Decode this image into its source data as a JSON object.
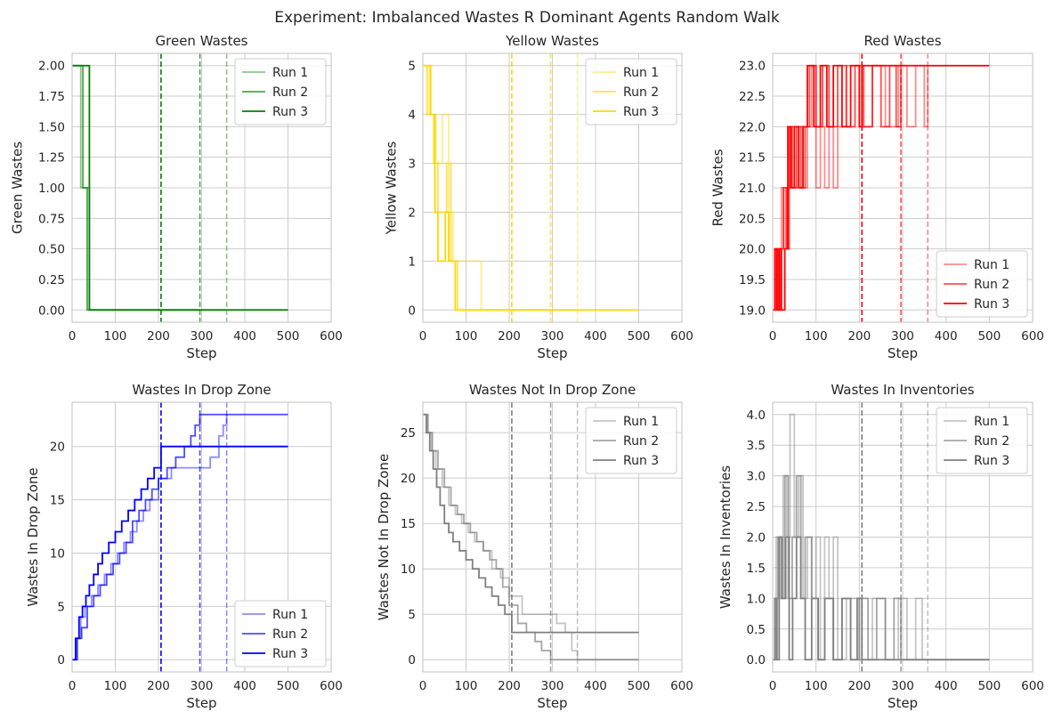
{
  "figure": {
    "title": "Experiment: Imbalanced Wastes R Dominant Agents Random Walk"
  },
  "chart_data": [
    {
      "type": "line",
      "title": "Green Wastes",
      "xlabel": "Step",
      "ylabel": "Green Wastes",
      "xlim": [
        0,
        600
      ],
      "ylim": [
        -0.1,
        2.1
      ],
      "xticks": [
        0,
        100,
        200,
        300,
        400,
        500,
        600
      ],
      "xtick_labels": [
        "0",
        "100",
        "200",
        "300",
        "400",
        "500",
        "600"
      ],
      "yticks": [
        0,
        0.25,
        0.5,
        0.75,
        1.0,
        1.25,
        1.5,
        1.75,
        2.0
      ],
      "ytick_labels": [
        "0.00",
        "0.25",
        "0.50",
        "0.75",
        "1.00",
        "1.25",
        "1.50",
        "1.75",
        "2.00"
      ],
      "grid": true,
      "legend": "top-right",
      "color": "#008000",
      "series": [
        {
          "name": "Run 1",
          "opacity": 0.45,
          "end_marker": 358,
          "x": [
            0,
            20,
            20,
            40,
            40,
            358
          ],
          "y": [
            2,
            2,
            1,
            1,
            0,
            0
          ]
        },
        {
          "name": "Run 2",
          "opacity": 0.7,
          "end_marker": 296,
          "x": [
            0,
            25,
            25,
            35,
            35,
            296
          ],
          "y": [
            2,
            2,
            1,
            1,
            0,
            0
          ]
        },
        {
          "name": "Run 3",
          "opacity": 1.0,
          "end_marker": 206,
          "x": [
            0,
            33,
            33,
            40,
            40,
            500
          ],
          "y": [
            2,
            2,
            2,
            1,
            0,
            0
          ]
        }
      ]
    },
    {
      "type": "line",
      "title": "Yellow Wastes",
      "xlabel": "Step",
      "ylabel": "Yellow Wastes",
      "xlim": [
        0,
        600
      ],
      "ylim": [
        -0.25,
        5.25
      ],
      "xticks": [
        0,
        100,
        200,
        300,
        400,
        500,
        600
      ],
      "xtick_labels": [
        "0",
        "100",
        "200",
        "300",
        "400",
        "500",
        "600"
      ],
      "yticks": [
        0,
        1,
        2,
        3,
        4,
        5
      ],
      "ytick_labels": [
        "0",
        "1",
        "2",
        "3",
        "4",
        "5"
      ],
      "grid": true,
      "legend": "top-right",
      "color": "#FFD700",
      "series": [
        {
          "name": "Run 1",
          "opacity": 0.45,
          "end_marker": 358,
          "x": [
            0,
            15,
            15,
            30,
            30,
            45,
            45,
            60,
            60,
            70,
            70,
            90,
            90,
            135,
            135,
            358
          ],
          "y": [
            5,
            5,
            4,
            4,
            3,
            3,
            4,
            4,
            2,
            2,
            1,
            1,
            1,
            1,
            0,
            0
          ]
        },
        {
          "name": "Run 2",
          "opacity": 0.7,
          "end_marker": 296,
          "x": [
            0,
            10,
            10,
            25,
            25,
            35,
            35,
            55,
            55,
            65,
            65,
            80,
            80,
            296
          ],
          "y": [
            5,
            5,
            4,
            4,
            3,
            3,
            2,
            2,
            3,
            3,
            1,
            1,
            0,
            0
          ]
        },
        {
          "name": "Run 3",
          "opacity": 1.0,
          "end_marker": 206,
          "x": [
            0,
            18,
            18,
            28,
            28,
            35,
            35,
            52,
            52,
            60,
            60,
            75,
            75,
            500
          ],
          "y": [
            5,
            5,
            4,
            4,
            2,
            2,
            1,
            1,
            2,
            2,
            1,
            1,
            0,
            0
          ]
        }
      ]
    },
    {
      "type": "line",
      "title": "Red Wastes",
      "xlabel": "Step",
      "ylabel": "Red Wastes",
      "xlim": [
        0,
        600
      ],
      "ylim": [
        18.8,
        23.2
      ],
      "xticks": [
        0,
        100,
        200,
        300,
        400,
        500,
        600
      ],
      "xtick_labels": [
        "0",
        "100",
        "200",
        "300",
        "400",
        "500",
        "600"
      ],
      "yticks": [
        19.0,
        19.5,
        20.0,
        20.5,
        21.0,
        21.5,
        22.0,
        22.5,
        23.0
      ],
      "ytick_labels": [
        "19.0",
        "19.5",
        "20.0",
        "20.5",
        "21.0",
        "21.5",
        "22.0",
        "22.5",
        "23.0"
      ],
      "grid": true,
      "legend": "bottom-right",
      "color": "#FF0000",
      "series": [
        {
          "name": "Run 1",
          "opacity": 0.45,
          "end_marker": 358,
          "x": [
            0,
            10,
            15,
            20,
            25,
            30,
            40,
            50,
            60,
            70,
            80,
            90,
            100,
            110,
            120,
            130,
            140,
            150,
            170,
            200,
            230,
            260,
            290,
            310,
            330,
            350,
            358
          ],
          "y": [
            19,
            20,
            19,
            21,
            20,
            21,
            22,
            21,
            22,
            21,
            22,
            23,
            21,
            22,
            21,
            22,
            21,
            22,
            23,
            22,
            23,
            22,
            23,
            22,
            23,
            22,
            23
          ]
        },
        {
          "name": "Run 2",
          "opacity": 0.7,
          "end_marker": 296,
          "x": [
            0,
            8,
            12,
            18,
            25,
            32,
            38,
            45,
            55,
            65,
            75,
            85,
            100,
            115,
            130,
            150,
            170,
            190,
            210,
            230,
            250,
            270,
            285,
            296
          ],
          "y": [
            19,
            20,
            19,
            20,
            21,
            20,
            22,
            21,
            22,
            21,
            22,
            23,
            22,
            23,
            22,
            23,
            22,
            23,
            22,
            23,
            22,
            23,
            22,
            23
          ]
        },
        {
          "name": "Run 3",
          "opacity": 1.0,
          "end_marker": 206,
          "x": [
            0,
            5,
            10,
            15,
            20,
            28,
            35,
            42,
            50,
            60,
            70,
            80,
            95,
            110,
            125,
            140,
            160,
            180,
            200,
            206,
            500
          ],
          "y": [
            19,
            20,
            19,
            20,
            19,
            20,
            22,
            21,
            22,
            21,
            22,
            23,
            22,
            23,
            22,
            23,
            22,
            23,
            22,
            23,
            23
          ]
        }
      ]
    },
    {
      "type": "line",
      "title": "Wastes In Drop Zone",
      "xlabel": "Step",
      "ylabel": "Wastes In Drop Zone",
      "xlim": [
        0,
        600
      ],
      "ylim": [
        -1.15,
        24.15
      ],
      "xticks": [
        0,
        100,
        200,
        300,
        400,
        500,
        600
      ],
      "xtick_labels": [
        "0",
        "100",
        "200",
        "300",
        "400",
        "500",
        "600"
      ],
      "yticks": [
        0,
        5,
        10,
        15,
        20
      ],
      "ytick_labels": [
        "0",
        "5",
        "10",
        "15",
        "20"
      ],
      "grid": true,
      "legend": "bottom-right",
      "color": "#0000FF",
      "series": [
        {
          "name": "Run 1",
          "opacity": 0.45,
          "end_marker": 358,
          "x": [
            0,
            10,
            20,
            30,
            45,
            60,
            75,
            90,
            105,
            120,
            135,
            150,
            165,
            180,
            200,
            230,
            260,
            290,
            320,
            340,
            350,
            358
          ],
          "y": [
            0,
            2,
            4,
            5,
            6,
            7,
            8,
            9,
            10,
            11,
            12,
            13,
            14,
            15,
            17,
            18,
            18,
            18,
            19,
            21,
            22,
            23
          ]
        },
        {
          "name": "Run 2",
          "opacity": 0.7,
          "end_marker": 296,
          "x": [
            0,
            12,
            22,
            35,
            50,
            65,
            80,
            95,
            110,
            125,
            140,
            155,
            170,
            185,
            200,
            220,
            240,
            260,
            275,
            285,
            296,
            500
          ],
          "y": [
            0,
            2,
            3,
            5,
            6,
            7,
            8,
            9,
            10,
            11,
            13,
            14,
            15,
            16,
            17,
            18,
            19,
            20,
            21,
            22,
            23,
            23
          ]
        },
        {
          "name": "Run 3",
          "opacity": 1.0,
          "end_marker": 206,
          "x": [
            0,
            8,
            16,
            24,
            32,
            40,
            50,
            60,
            70,
            85,
            100,
            115,
            130,
            145,
            160,
            175,
            190,
            206,
            500
          ],
          "y": [
            0,
            2,
            4,
            5,
            6,
            7,
            8,
            9,
            10,
            11,
            12,
            13,
            14,
            15,
            16,
            17,
            18,
            20,
            20
          ]
        }
      ]
    },
    {
      "type": "line",
      "title": "Wastes Not In Drop Zone",
      "xlabel": "Step",
      "ylabel": "Wastes Not In Drop Zone",
      "xlim": [
        0,
        600
      ],
      "ylim": [
        -1.35,
        28.35
      ],
      "xticks": [
        0,
        100,
        200,
        300,
        400,
        500,
        600
      ],
      "xtick_labels": [
        "0",
        "100",
        "200",
        "300",
        "400",
        "500",
        "600"
      ],
      "yticks": [
        0,
        5,
        10,
        15,
        20,
        25
      ],
      "ytick_labels": [
        "0",
        "5",
        "10",
        "15",
        "20",
        "25"
      ],
      "grid": true,
      "legend": "top-right",
      "color": "#808080",
      "series": [
        {
          "name": "Run 1",
          "opacity": 0.45,
          "end_marker": 358,
          "x": [
            0,
            10,
            20,
            30,
            45,
            60,
            75,
            90,
            105,
            120,
            140,
            160,
            180,
            200,
            230,
            260,
            290,
            310,
            330,
            345,
            358,
            500
          ],
          "y": [
            27,
            25,
            23,
            21,
            19,
            17,
            16,
            15,
            14,
            13,
            12,
            10,
            9,
            7,
            5,
            5,
            5,
            4,
            3,
            1,
            0,
            0
          ]
        },
        {
          "name": "Run 2",
          "opacity": 0.7,
          "end_marker": 296,
          "x": [
            0,
            12,
            22,
            35,
            50,
            65,
            80,
            95,
            110,
            125,
            140,
            155,
            170,
            185,
            200,
            220,
            240,
            260,
            275,
            285,
            296,
            500
          ],
          "y": [
            27,
            25,
            23,
            21,
            19,
            17,
            16,
            15,
            14,
            13,
            12,
            11,
            10,
            8,
            6,
            4,
            3,
            2,
            1,
            1,
            0,
            0
          ]
        },
        {
          "name": "Run 3",
          "opacity": 1.0,
          "end_marker": 206,
          "x": [
            0,
            8,
            16,
            24,
            32,
            40,
            50,
            60,
            70,
            85,
            100,
            115,
            130,
            145,
            160,
            175,
            190,
            206,
            500
          ],
          "y": [
            27,
            25,
            23,
            21,
            19,
            17,
            15,
            14,
            13,
            12,
            11,
            10,
            9,
            8,
            7,
            6,
            5,
            3,
            3
          ]
        }
      ]
    },
    {
      "type": "line",
      "title": "Wastes In Inventories",
      "xlabel": "Step",
      "ylabel": "Wastes In Inventories",
      "xlim": [
        0,
        600
      ],
      "ylim": [
        -0.2,
        4.2
      ],
      "xticks": [
        0,
        100,
        200,
        300,
        400,
        500,
        600
      ],
      "xtick_labels": [
        "0",
        "100",
        "200",
        "300",
        "400",
        "500",
        "600"
      ],
      "yticks": [
        0,
        0.5,
        1.0,
        1.5,
        2.0,
        2.5,
        3.0,
        3.5,
        4.0
      ],
      "ytick_labels": [
        "0.0",
        "0.5",
        "1.0",
        "1.5",
        "2.0",
        "2.5",
        "3.0",
        "3.5",
        "4.0"
      ],
      "grid": true,
      "legend": "top-right",
      "color": "#808080",
      "series": [
        {
          "name": "Run 1",
          "opacity": 0.45,
          "end_marker": 358,
          "x": [
            0,
            8,
            16,
            24,
            32,
            40,
            50,
            60,
            70,
            80,
            90,
            100,
            110,
            120,
            130,
            140,
            150,
            170,
            200,
            230,
            260,
            290,
            310,
            330,
            345,
            358,
            500
          ],
          "y": [
            0,
            2,
            1,
            3,
            2,
            4,
            2,
            3,
            1,
            2,
            1,
            2,
            0,
            2,
            1,
            2,
            0,
            1,
            0,
            1,
            0,
            1,
            0,
            1,
            0,
            0,
            0
          ]
        },
        {
          "name": "Run 2",
          "opacity": 0.7,
          "end_marker": 296,
          "x": [
            0,
            6,
            12,
            20,
            28,
            36,
            45,
            55,
            65,
            75,
            90,
            105,
            120,
            140,
            160,
            180,
            200,
            220,
            240,
            260,
            280,
            296,
            500
          ],
          "y": [
            0,
            1,
            2,
            1,
            3,
            1,
            2,
            3,
            1,
            2,
            1,
            0,
            1,
            0,
            1,
            0,
            1,
            0,
            1,
            0,
            1,
            0,
            0
          ]
        },
        {
          "name": "Run 3",
          "opacity": 1.0,
          "end_marker": 206,
          "x": [
            0,
            5,
            10,
            15,
            22,
            30,
            38,
            46,
            55,
            65,
            75,
            90,
            105,
            120,
            140,
            160,
            180,
            195,
            206,
            500
          ],
          "y": [
            0,
            1,
            0,
            2,
            1,
            2,
            0,
            1,
            2,
            1,
            0,
            1,
            0,
            1,
            0,
            1,
            0,
            1,
            0,
            0
          ]
        }
      ]
    }
  ]
}
